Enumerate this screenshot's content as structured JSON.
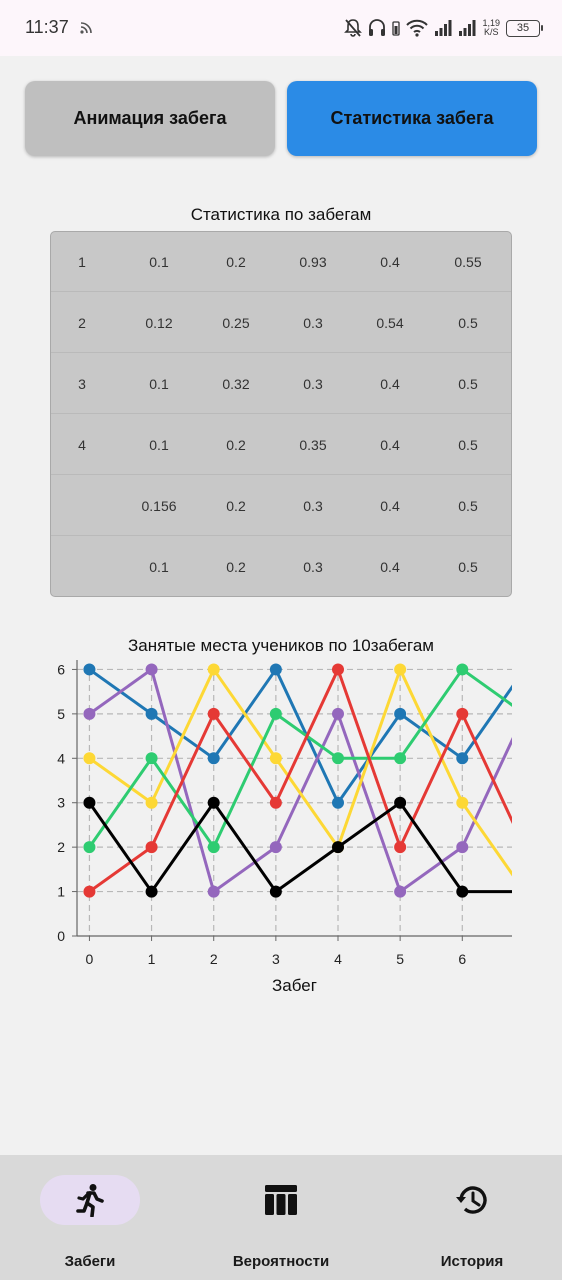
{
  "status_bar": {
    "time": "11:37",
    "speed_value": "1,19",
    "speed_unit": "K/S",
    "battery": "35"
  },
  "tabs": {
    "animation_label": "Анимация забега",
    "statistics_label": "Статистика забега"
  },
  "stats_table": {
    "title": "Статистика по забегам",
    "rows": [
      [
        "1",
        "0.1",
        "0.2",
        "0.93",
        "0.4",
        "0.55"
      ],
      [
        "2",
        "0.12",
        "0.25",
        "0.3",
        "0.54",
        "0.5"
      ],
      [
        "3",
        "0.1",
        "0.32",
        "0.3",
        "0.4",
        "0.5"
      ],
      [
        "4",
        "0.1",
        "0.2",
        "0.35",
        "0.4",
        "0.5"
      ],
      [
        "",
        "0.156",
        "0.2",
        "0.3",
        "0.4",
        "0.5"
      ],
      [
        "",
        "0.1",
        "0.2",
        "0.3",
        "0.4",
        "0.5"
      ]
    ]
  },
  "chart_data": {
    "type": "line",
    "title": "Занятые места учеников по 10забегам",
    "xlabel": "Забег",
    "ylabel": "",
    "x": [
      0,
      1,
      2,
      3,
      4,
      5,
      6,
      7
    ],
    "xlim": [
      -0.2,
      6.8
    ],
    "ylim": [
      0,
      6.1
    ],
    "x_ticks": [
      0,
      1,
      2,
      3,
      4,
      5,
      6
    ],
    "y_ticks": [
      0,
      1,
      2,
      3,
      4,
      5,
      6
    ],
    "grid": true,
    "series": [
      {
        "color": "#1f77b4",
        "values": [
          6,
          5,
          4,
          6,
          3,
          5,
          4,
          6
        ]
      },
      {
        "color": "#9467bd",
        "values": [
          5,
          6,
          1,
          2,
          5,
          1,
          2,
          5
        ]
      },
      {
        "color": "#fdd835",
        "values": [
          4,
          3,
          6,
          4,
          2,
          6,
          3,
          1
        ]
      },
      {
        "color": "#2ecc71",
        "values": [
          2,
          4,
          2,
          5,
          4,
          4,
          6,
          5
        ]
      },
      {
        "color": "#e53935",
        "values": [
          1,
          2,
          5,
          3,
          6,
          2,
          5,
          2
        ]
      },
      {
        "color": "#000000",
        "values": [
          3,
          1,
          3,
          1,
          2,
          3,
          1,
          1
        ]
      }
    ]
  },
  "bottom_nav": {
    "items": [
      {
        "label": "Забеги",
        "icon": "runner-icon",
        "active": true
      },
      {
        "label": "Вероятности",
        "icon": "table-icon",
        "active": false
      },
      {
        "label": "История",
        "icon": "history-icon",
        "active": false
      }
    ]
  }
}
